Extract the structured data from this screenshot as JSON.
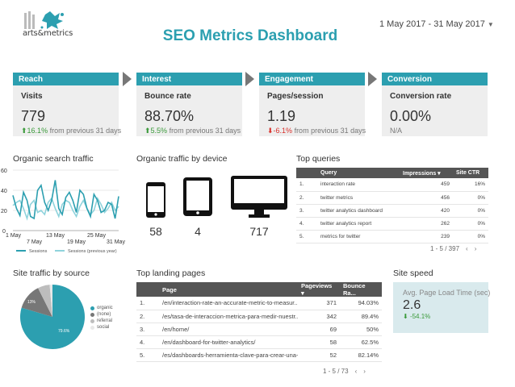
{
  "header": {
    "logo_text": "arts&metrics",
    "title": "SEO Metrics Dashboard",
    "date_range": "1 May 2017 - 31 May 2017"
  },
  "kpis": [
    {
      "stage": "Reach",
      "label": "Visits",
      "value": "779",
      "change": "16.1%",
      "change_suffix": " from previous 31 days",
      "direction": "up"
    },
    {
      "stage": "Interest",
      "label": "Bounce rate",
      "value": "88.70%",
      "change": "5.5%",
      "change_suffix": " from previous 31 days",
      "direction": "up"
    },
    {
      "stage": "Engagement",
      "label": "Pages/session",
      "value": "1.19",
      "change": "-6.1%",
      "change_suffix": " from previous 31 days",
      "direction": "down"
    },
    {
      "stage": "Conversion",
      "label": "Conversion rate",
      "value": "0.00%",
      "change": "N/A",
      "change_suffix": "",
      "direction": "none"
    }
  ],
  "organic_search": {
    "title": "Organic search traffic",
    "y_ticks": [
      "60",
      "40",
      "20",
      "0"
    ],
    "x_ticks": [
      "1 May",
      "7 May",
      "13 May",
      "19 May",
      "25 May",
      "31 May"
    ],
    "legend": [
      "Sessions",
      "Sessions (previous year)"
    ]
  },
  "chart_data": {
    "type": "line",
    "title": "Organic search traffic",
    "ylim": [
      0,
      60
    ],
    "x": [
      "1 May",
      "2 May",
      "3 May",
      "4 May",
      "5 May",
      "6 May",
      "7 May",
      "8 May",
      "9 May",
      "10 May",
      "11 May",
      "12 May",
      "13 May",
      "14 May",
      "15 May",
      "16 May",
      "17 May",
      "18 May",
      "19 May",
      "20 May",
      "21 May",
      "22 May",
      "23 May",
      "24 May",
      "25 May",
      "26 May",
      "27 May",
      "28 May",
      "29 May",
      "30 May",
      "31 May"
    ],
    "series": [
      {
        "name": "Sessions",
        "color": "#2c9fb0",
        "values": [
          35,
          22,
          15,
          38,
          30,
          14,
          12,
          40,
          45,
          28,
          20,
          30,
          50,
          22,
          16,
          33,
          38,
          30,
          18,
          40,
          36,
          22,
          14,
          36,
          30,
          18,
          20,
          28,
          26,
          12,
          34
        ]
      },
      {
        "name": "Sessions (previous year)",
        "color": "#8fd3dc",
        "values": [
          25,
          28,
          30,
          22,
          12,
          26,
          30,
          18,
          20,
          16,
          28,
          32,
          22,
          14,
          26,
          30,
          28,
          20,
          14,
          24,
          30,
          22,
          16,
          20,
          32,
          26,
          18,
          22,
          28,
          20,
          24
        ]
      }
    ]
  },
  "device": {
    "title": "Organic traffic by device",
    "counts": [
      "58",
      "4",
      "717"
    ]
  },
  "queries": {
    "title": "Top queries",
    "headers": {
      "query": "Query",
      "impressions": "Impressions ▾",
      "ctr": "Site CTR"
    },
    "rows": [
      {
        "n": "1.",
        "query": "interaction rate",
        "impressions": "459",
        "ctr": "16%"
      },
      {
        "n": "2.",
        "query": "twitter metrics",
        "impressions": "456",
        "ctr": "0%"
      },
      {
        "n": "3.",
        "query": "twitter analytics dashboard",
        "impressions": "420",
        "ctr": "0%"
      },
      {
        "n": "4.",
        "query": "twitter analytics report",
        "impressions": "262",
        "ctr": "0%"
      },
      {
        "n": "5.",
        "query": "metrics for twitter",
        "impressions": "239",
        "ctr": "0%"
      }
    ],
    "pager": "1 - 5 / 397"
  },
  "source": {
    "title": "Site traffic by source",
    "legend": [
      "organic",
      "(none)",
      "referral",
      "social"
    ],
    "slices": [
      {
        "name": "organic",
        "value": 79.6,
        "label": "79.6%",
        "color": "#2c9fb0"
      },
      {
        "name": "(none)",
        "value": 13.0,
        "label": "13%",
        "color": "#777777"
      },
      {
        "name": "referral",
        "value": 6.0,
        "label": "",
        "color": "#bdbdbd"
      },
      {
        "name": "social",
        "value": 1.4,
        "label": "",
        "color": "#e8e8e8"
      }
    ]
  },
  "landing": {
    "title": "Top landing pages",
    "headers": {
      "page": "Page",
      "pageviews": "Pageviews ▾",
      "bounce": "Bounce Ra..."
    },
    "rows": [
      {
        "n": "1.",
        "page": "/en/interaction-rate-an-accurate-metric-to-measur...",
        "pageviews": "371",
        "bounce": "94.03%"
      },
      {
        "n": "2.",
        "page": "/es/tasa-de-interaccion-metrica-para-medir-nuestr...",
        "pageviews": "342",
        "bounce": "89.4%"
      },
      {
        "n": "3.",
        "page": "/en/home/",
        "pageviews": "69",
        "bounce": "50%"
      },
      {
        "n": "4.",
        "page": "/en/dashboard-for-twitter-analytics/",
        "pageviews": "58",
        "bounce": "62.5%"
      },
      {
        "n": "5.",
        "page": "/es/dashboards-herramienta-clave-para-crear-una-...",
        "pageviews": "52",
        "bounce": "82.14%"
      }
    ],
    "pager": "1 - 5 / 73"
  },
  "speed": {
    "title": "Site speed",
    "label": "Avg. Page Load Time (sec)",
    "value": "2.6",
    "change": "-54.1%"
  }
}
